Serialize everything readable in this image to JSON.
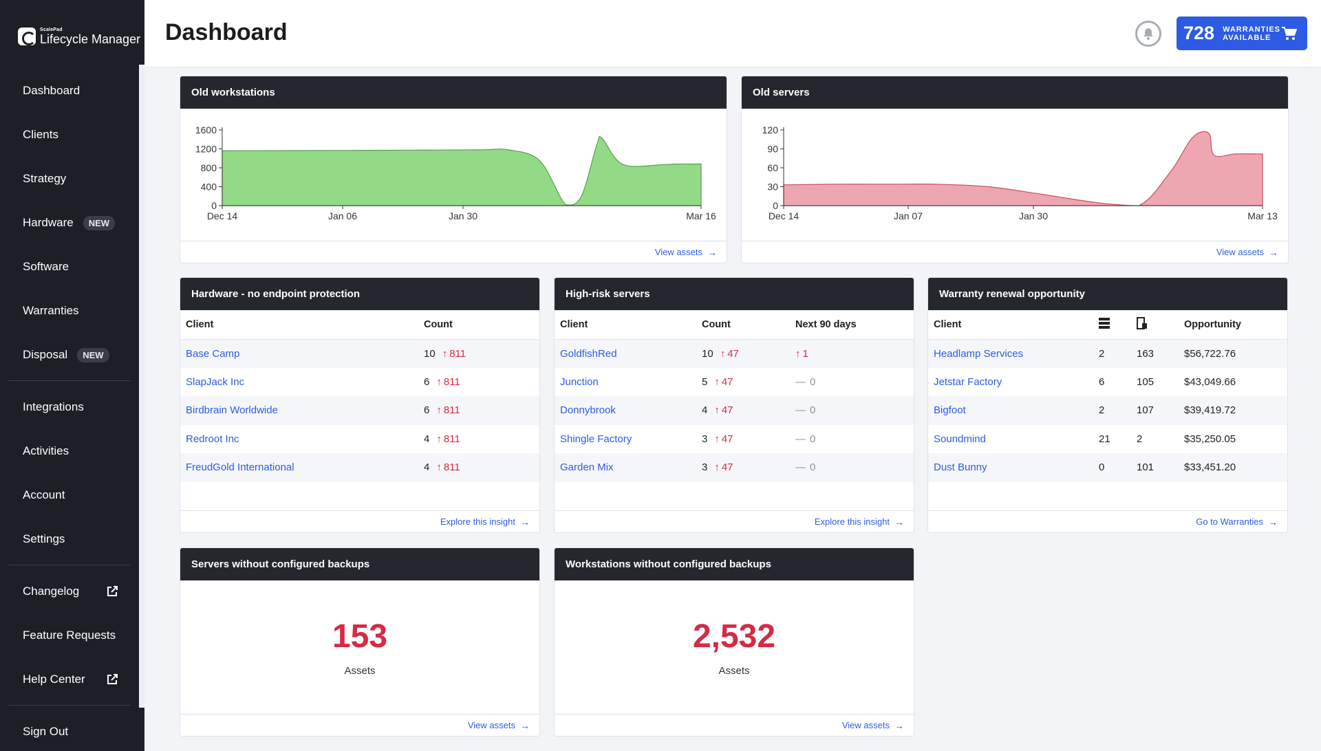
{
  "sidebar": {
    "logo_small": "ScalePad",
    "logo_big": "Lifecycle Manager",
    "items": [
      {
        "label": "Dashboard"
      },
      {
        "label": "Clients"
      },
      {
        "label": "Strategy"
      },
      {
        "label": "Hardware",
        "badge": "NEW"
      },
      {
        "label": "Software"
      },
      {
        "label": "Warranties"
      },
      {
        "label": "Disposal",
        "badge": "NEW"
      },
      {
        "label": "Integrations"
      },
      {
        "label": "Activities"
      },
      {
        "label": "Account"
      },
      {
        "label": "Settings"
      },
      {
        "label": "Changelog",
        "external": true
      },
      {
        "label": "Feature Requests"
      },
      {
        "label": "Help Center",
        "external": true
      },
      {
        "label": "Sign Out"
      }
    ]
  },
  "header": {
    "title": "Dashboard",
    "warranty_count": "728",
    "warranty_line1": "WARRANTIES",
    "warranty_line2": "AVAILABLE"
  },
  "colors": {
    "accent": "#2d5be3",
    "alert": "#d62a45",
    "workstation_fill": "#93da86",
    "server_fill": "#eea7b1"
  },
  "old_workstations": {
    "title": "Old workstations",
    "link": "View assets",
    "chart_data": {
      "type": "area",
      "y_ticks": [
        "0",
        "400",
        "800",
        "1200",
        "1600"
      ],
      "ylim": [
        0,
        1600
      ],
      "x_ticks": [
        "Dec 14",
        "Jan 06",
        "Jan 30",
        "Mar 16"
      ],
      "xlim_days": [
        0,
        92
      ],
      "x_days": [
        0,
        16,
        40,
        50,
        55,
        61,
        66,
        69,
        72,
        73,
        77,
        85,
        87,
        91,
        92
      ],
      "values": [
        1160,
        1165,
        1175,
        1180,
        1180,
        950,
        20,
        200,
        1300,
        1420,
        870,
        870,
        880,
        880,
        880
      ]
    }
  },
  "old_servers": {
    "title": "Old servers",
    "link": "View assets",
    "chart_data": {
      "type": "area",
      "y_ticks": [
        "0",
        "30",
        "60",
        "90",
        "120"
      ],
      "ylim": [
        0,
        120
      ],
      "x_ticks": [
        "Dec 14",
        "Jan 07",
        "Jan 30",
        "Mar 13"
      ],
      "xlim_days": [
        0,
        89
      ],
      "x_days": [
        0,
        10,
        20,
        28,
        38,
        48,
        58,
        66,
        72,
        76,
        79,
        80,
        84,
        88,
        89
      ],
      "values": [
        33,
        34,
        34,
        34,
        30,
        18,
        5,
        0,
        55,
        108,
        115,
        80,
        82,
        82,
        82
      ]
    }
  },
  "no_endpoint": {
    "title": "Hardware - no endpoint protection",
    "col_client": "Client",
    "col_count": "Count",
    "rows": [
      {
        "client": "Base Camp",
        "count": "10",
        "trend": "811"
      },
      {
        "client": "SlapJack Inc",
        "count": "6",
        "trend": "811"
      },
      {
        "client": "Birdbrain Worldwide",
        "count": "6",
        "trend": "811"
      },
      {
        "client": "Redroot Inc",
        "count": "4",
        "trend": "811"
      },
      {
        "client": "FreudGold International",
        "count": "4",
        "trend": "811"
      }
    ],
    "link": "Explore this insight"
  },
  "high_risk": {
    "title": "High-risk servers",
    "col_client": "Client",
    "col_count": "Count",
    "col_next": "Next 90 days",
    "rows": [
      {
        "client": "GoldfishRed",
        "count": "10",
        "trend": "47",
        "next": "1",
        "next_up": true
      },
      {
        "client": "Junction",
        "count": "5",
        "trend": "47",
        "next": "0",
        "next_up": false
      },
      {
        "client": "Donnybrook",
        "count": "4",
        "trend": "47",
        "next": "0",
        "next_up": false
      },
      {
        "client": "Shingle Factory",
        "count": "3",
        "trend": "47",
        "next": "0",
        "next_up": false
      },
      {
        "client": "Garden Mix",
        "count": "3",
        "trend": "47",
        "next": "0",
        "next_up": false
      }
    ],
    "link": "Explore this insight"
  },
  "warranty_renewal": {
    "title": "Warranty renewal opportunity",
    "col_client": "Client",
    "col_opportunity": "Opportunity",
    "rows": [
      {
        "client": "Headlamp Services",
        "servers": "2",
        "workstations": "163",
        "opportunity": "$56,722.76"
      },
      {
        "client": "Jetstar Factory",
        "servers": "6",
        "workstations": "105",
        "opportunity": "$43,049.66"
      },
      {
        "client": "Bigfoot",
        "servers": "2",
        "workstations": "107",
        "opportunity": "$39,419.72"
      },
      {
        "client": "Soundmind",
        "servers": "21",
        "workstations": "2",
        "opportunity": "$35,250.05"
      },
      {
        "client": "Dust Bunny",
        "servers": "0",
        "workstations": "101",
        "opportunity": "$33,451.20"
      }
    ],
    "link": "Go to Warranties"
  },
  "servers_backup": {
    "title": "Servers without configured backups",
    "value": "153",
    "label": "Assets",
    "link": "View assets"
  },
  "workstations_backup": {
    "title": "Workstations without configured backups",
    "value": "2,532",
    "label": "Assets",
    "link": "View assets"
  }
}
